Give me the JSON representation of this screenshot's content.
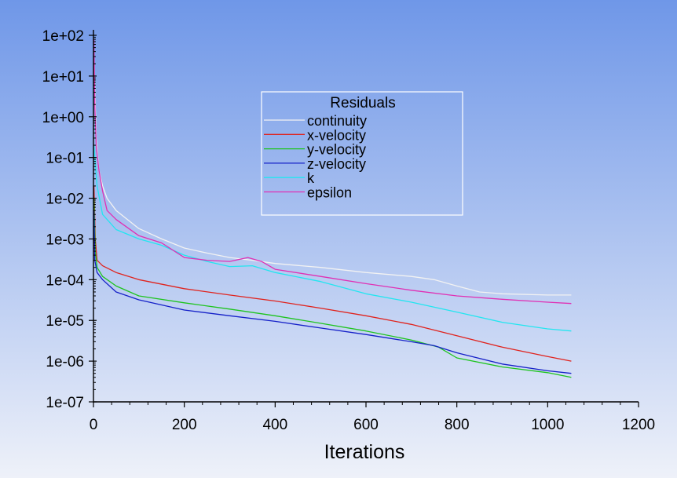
{
  "chart_data": {
    "type": "line",
    "title": "",
    "xlabel": "Iterations",
    "ylabel": "",
    "yscale": "log",
    "xlim": [
      0,
      1200
    ],
    "ylim_exp": [
      -7,
      2
    ],
    "x_ticks": [
      0,
      200,
      400,
      600,
      800,
      1000,
      1200
    ],
    "x_tick_labels": [
      "0",
      "200",
      "400",
      "600",
      "800",
      "1000",
      "1200"
    ],
    "y_tick_labels": [
      "1e-07",
      "1e-06",
      "1e-05",
      "1e-04",
      "1e-03",
      "1e-02",
      "1e-01",
      "1e+00",
      "1e+01",
      "1e+02"
    ],
    "grid": false,
    "legend": {
      "title": "Residuals",
      "placement": "upper-center"
    },
    "background": {
      "top": "#6f97e8",
      "bottom": "#eef1f9"
    },
    "series": [
      {
        "name": "continuity",
        "color": "#f2f2f2",
        "points": [
          [
            1,
            40
          ],
          [
            3,
            5
          ],
          [
            6,
            0.3
          ],
          [
            12,
            0.05
          ],
          [
            20,
            0.02
          ],
          [
            30,
            0.01
          ],
          [
            50,
            0.005
          ],
          [
            100,
            0.0018
          ],
          [
            150,
            0.001
          ],
          [
            200,
            0.0006
          ],
          [
            250,
            0.00045
          ],
          [
            300,
            0.00035
          ],
          [
            350,
            0.0003
          ],
          [
            400,
            0.00025
          ],
          [
            500,
            0.0002
          ],
          [
            600,
            0.00015
          ],
          [
            700,
            0.00012
          ],
          [
            750,
            0.0001
          ],
          [
            800,
            7e-05
          ],
          [
            850,
            5e-05
          ],
          [
            900,
            4.5e-05
          ],
          [
            1000,
            4.2e-05
          ],
          [
            1052,
            4.2e-05
          ]
        ]
      },
      {
        "name": "x-velocity",
        "color": "#e0231d",
        "points": [
          [
            1,
            0.02
          ],
          [
            4,
            0.001
          ],
          [
            8,
            0.0003
          ],
          [
            20,
            0.00022
          ],
          [
            50,
            0.00015
          ],
          [
            100,
            0.0001
          ],
          [
            200,
            6e-05
          ],
          [
            300,
            4.2e-05
          ],
          [
            400,
            3e-05
          ],
          [
            500,
            2e-05
          ],
          [
            600,
            1.3e-05
          ],
          [
            700,
            8e-06
          ],
          [
            800,
            4.2e-06
          ],
          [
            900,
            2.2e-06
          ],
          [
            1000,
            1.3e-06
          ],
          [
            1052,
            1e-06
          ]
        ]
      },
      {
        "name": "y-velocity",
        "color": "#1ec41e",
        "points": [
          [
            1,
            0.01
          ],
          [
            4,
            0.0005
          ],
          [
            8,
            0.0002
          ],
          [
            20,
            0.00012
          ],
          [
            50,
            7e-05
          ],
          [
            100,
            4e-05
          ],
          [
            200,
            2.7e-05
          ],
          [
            300,
            1.9e-05
          ],
          [
            400,
            1.3e-05
          ],
          [
            500,
            8.5e-06
          ],
          [
            600,
            5.5e-06
          ],
          [
            700,
            3.3e-06
          ],
          [
            760,
            2.2e-06
          ],
          [
            800,
            1.2e-06
          ],
          [
            900,
            7.2e-07
          ],
          [
            1000,
            5.2e-07
          ],
          [
            1052,
            4e-07
          ]
        ]
      },
      {
        "name": "z-velocity",
        "color": "#1520c8",
        "points": [
          [
            1,
            0.005
          ],
          [
            3,
            0.0003
          ],
          [
            8,
            0.00015
          ],
          [
            20,
            0.0001
          ],
          [
            50,
            5e-05
          ],
          [
            100,
            3.2e-05
          ],
          [
            200,
            1.8e-05
          ],
          [
            300,
            1.3e-05
          ],
          [
            400,
            9.5e-06
          ],
          [
            500,
            6.5e-06
          ],
          [
            600,
            4.5e-06
          ],
          [
            700,
            3e-06
          ],
          [
            750,
            2.4e-06
          ],
          [
            800,
            1.6e-06
          ],
          [
            900,
            8.5e-07
          ],
          [
            1000,
            5.8e-07
          ],
          [
            1052,
            5e-07
          ]
        ]
      },
      {
        "name": "k",
        "color": "#22e6f0",
        "points": [
          [
            1,
            0.2
          ],
          [
            3,
            0.1
          ],
          [
            8,
            0.02
          ],
          [
            20,
            0.004
          ],
          [
            50,
            0.0017
          ],
          [
            100,
            0.001
          ],
          [
            150,
            0.0007
          ],
          [
            200,
            0.0004
          ],
          [
            250,
            0.00028
          ],
          [
            300,
            0.00021
          ],
          [
            350,
            0.00022
          ],
          [
            400,
            0.00015
          ],
          [
            500,
            9e-05
          ],
          [
            600,
            4.5e-05
          ],
          [
            700,
            2.8e-05
          ],
          [
            800,
            1.6e-05
          ],
          [
            900,
            9e-06
          ],
          [
            1000,
            6.2e-06
          ],
          [
            1052,
            5.5e-06
          ]
        ]
      },
      {
        "name": "epsilon",
        "color": "#e030b4",
        "points": [
          [
            1,
            80
          ],
          [
            3,
            2
          ],
          [
            6,
            0.2
          ],
          [
            12,
            0.05
          ],
          [
            20,
            0.015
          ],
          [
            30,
            0.005
          ],
          [
            50,
            0.003
          ],
          [
            100,
            0.0012
          ],
          [
            150,
            0.0008
          ],
          [
            200,
            0.00035
          ],
          [
            250,
            0.0003
          ],
          [
            300,
            0.00028
          ],
          [
            340,
            0.00035
          ],
          [
            370,
            0.00028
          ],
          [
            400,
            0.00018
          ],
          [
            500,
            0.00012
          ],
          [
            600,
            8e-05
          ],
          [
            700,
            5.5e-05
          ],
          [
            800,
            4e-05
          ],
          [
            900,
            3.3e-05
          ],
          [
            1000,
            2.8e-05
          ],
          [
            1052,
            2.6e-05
          ]
        ]
      }
    ]
  }
}
